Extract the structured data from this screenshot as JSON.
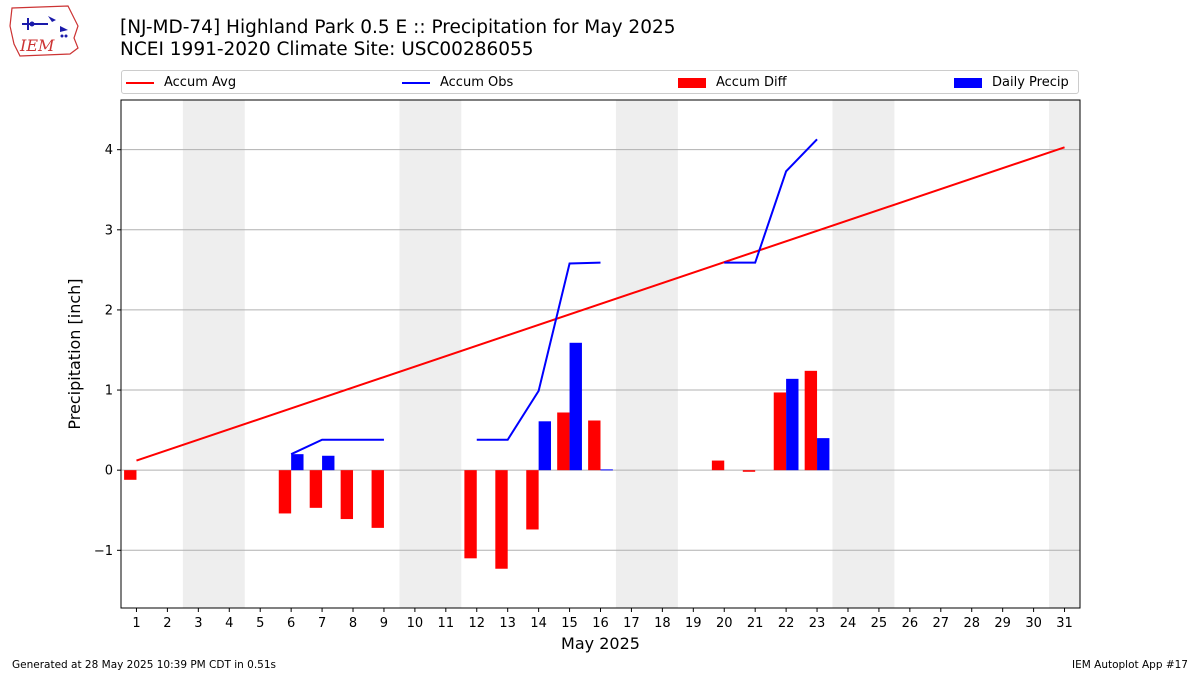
{
  "header": {
    "logo_text": "IEM",
    "title_line1": "[NJ-MD-74] Highland Park 0.5 E :: Precipitation for May 2025",
    "title_line2": "NCEI 1991-2020 Climate Site: USC00286055"
  },
  "footer": {
    "generated": "Generated at 28 May 2025 10:39 PM CDT in 0.51s",
    "app": "IEM Autoplot App #17"
  },
  "colors": {
    "accum_avg": "#ff0000",
    "accum_obs": "#0000ff",
    "accum_diff": "#ff0000",
    "daily_precip": "#0000ff",
    "weekend_shade": "#eeeeee",
    "grid": "#b0b0b0"
  },
  "chart_data": {
    "type": "bar",
    "xlabel": "May 2025",
    "ylabel": "Precipitation [inch]",
    "xlim": [
      0.5,
      31.5
    ],
    "ylim": [
      -1.72,
      4.62
    ],
    "yticks": [
      -1,
      0,
      1,
      2,
      3,
      4
    ],
    "ytick_labels": [
      "−1",
      "0",
      "1",
      "2",
      "3",
      "4"
    ],
    "days": [
      1,
      2,
      3,
      4,
      5,
      6,
      7,
      8,
      9,
      10,
      11,
      12,
      13,
      14,
      15,
      16,
      17,
      18,
      19,
      20,
      21,
      22,
      23,
      24,
      25,
      26,
      27,
      28,
      29,
      30,
      31
    ],
    "grid": "horizontal",
    "legend_position": "top",
    "weekend_spans": [
      [
        3,
        4
      ],
      [
        10,
        11
      ],
      [
        17,
        18
      ],
      [
        24,
        25
      ],
      [
        31,
        31
      ]
    ],
    "legend": [
      "Accum Avg",
      "Accum Obs",
      "Accum Diff",
      "Daily Precip"
    ],
    "accum_avg": {
      "name": "Accum Avg",
      "x": [
        1,
        31
      ],
      "values": [
        0.12,
        4.03
      ]
    },
    "accum_obs": {
      "name": "Accum Obs",
      "segments": [
        [
          [
            6,
            0.2
          ],
          [
            7,
            0.38
          ],
          [
            8,
            0.38
          ],
          [
            9,
            0.38
          ]
        ],
        [
          [
            12,
            0.38
          ],
          [
            13,
            0.38
          ],
          [
            14,
            0.99
          ],
          [
            15,
            2.58
          ],
          [
            16,
            2.59
          ]
        ],
        [
          [
            20,
            2.59
          ],
          [
            21,
            2.59
          ],
          [
            22,
            3.73
          ],
          [
            23,
            4.13
          ]
        ]
      ]
    },
    "accum_diff": {
      "name": "Accum Diff",
      "x": [
        1,
        6,
        7,
        8,
        9,
        12,
        13,
        14,
        15,
        16,
        20,
        21,
        22,
        23
      ],
      "values": [
        -0.12,
        -0.54,
        -0.47,
        -0.61,
        -0.72,
        -1.1,
        -1.23,
        -0.74,
        0.72,
        0.62,
        0.12,
        -0.02,
        0.97,
        1.24
      ]
    },
    "daily_precip": {
      "name": "Daily Precip",
      "x": [
        6,
        7,
        14,
        15,
        16,
        22,
        23
      ],
      "values": [
        0.2,
        0.18,
        0.61,
        1.59,
        0.01,
        1.14,
        0.4
      ]
    }
  }
}
